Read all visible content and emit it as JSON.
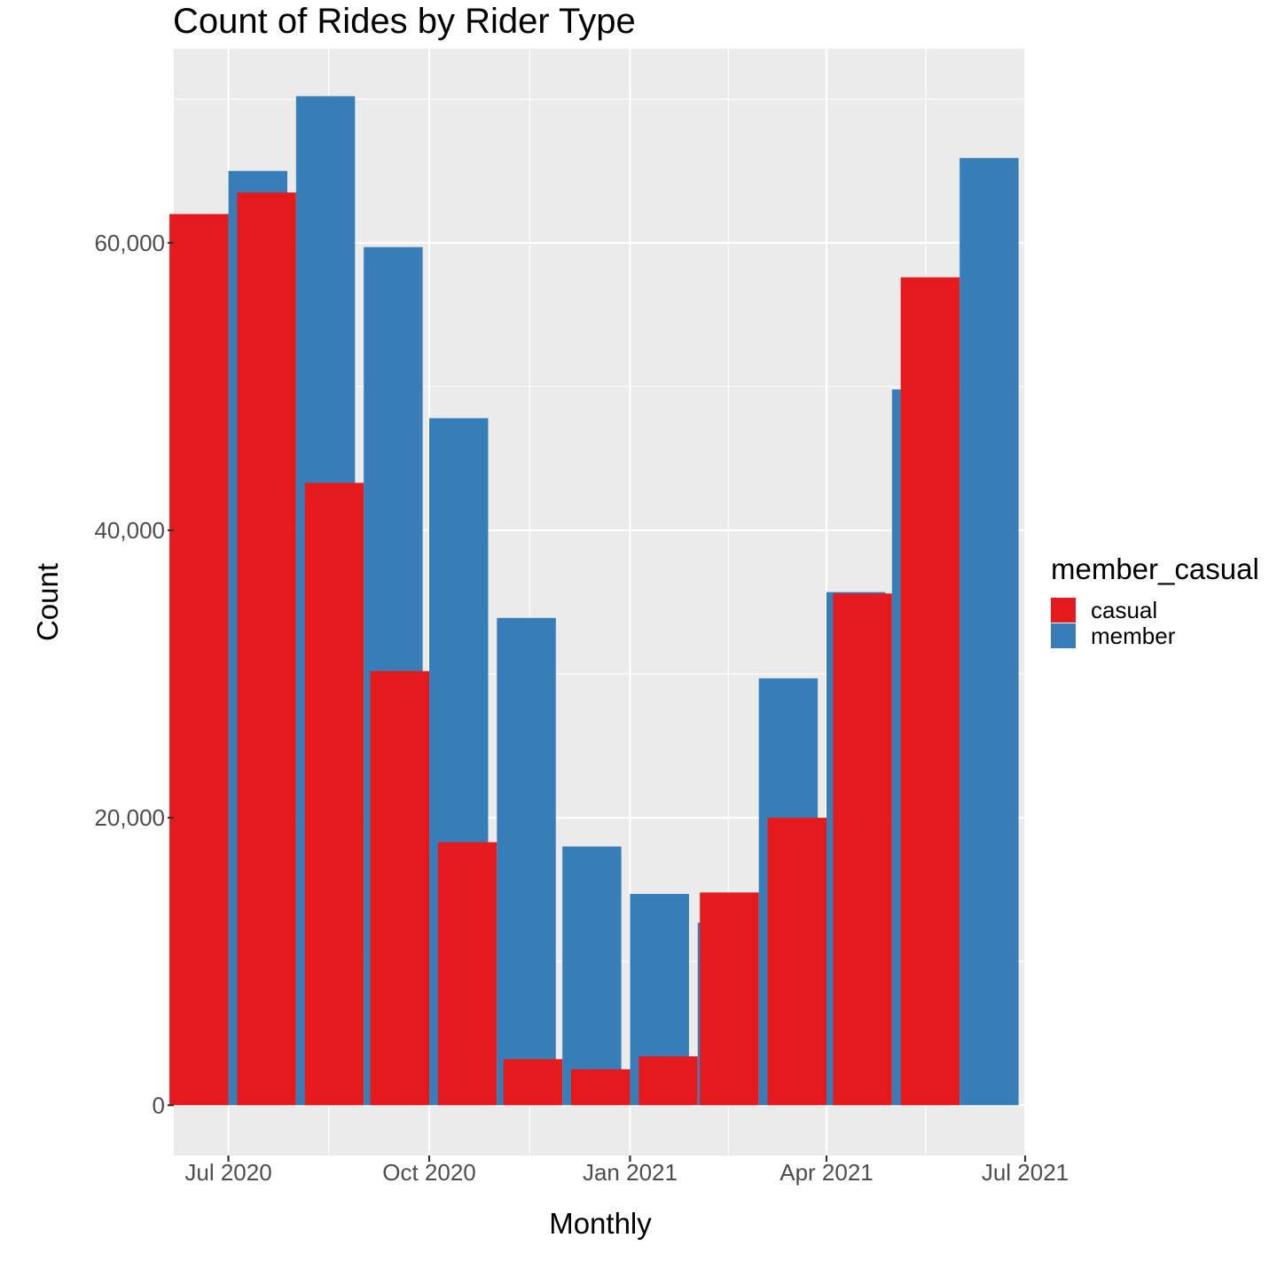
{
  "chart_data": {
    "type": "bar",
    "title": "Count of Rides by Rider Type",
    "xlabel": "Monthly",
    "ylabel": "Count",
    "x_axis_type": "date",
    "x_ticks": [
      {
        "date": "2020-07-01",
        "label": "Jul 2020"
      },
      {
        "date": "2020-10-01",
        "label": "Oct 2020"
      },
      {
        "date": "2021-01-01",
        "label": "Jan 2021"
      },
      {
        "date": "2021-04-01",
        "label": "Apr 2021"
      },
      {
        "date": "2021-07-01",
        "label": "Jul 2021"
      }
    ],
    "xlim": [
      "2020-06-06",
      "2021-07-01"
    ],
    "y_ticks": [
      {
        "value": 0,
        "label": "0"
      },
      {
        "value": 20000,
        "label": "20,000"
      },
      {
        "value": 40000,
        "label": "40,000"
      },
      {
        "value": 60000,
        "label": "60,000"
      }
    ],
    "ylim": [
      -3500,
      73500
    ],
    "grid": true,
    "legend_title": "member_casual",
    "legend_position": "right",
    "categories": [
      "2020-07-01",
      "2020-08-01",
      "2020-09-01",
      "2020-10-01",
      "2020-11-01",
      "2020-12-01",
      "2021-01-01",
      "2021-02-01",
      "2021-03-01",
      "2021-04-01",
      "2021-05-01",
      "2021-06-01"
    ],
    "series": [
      {
        "name": "casual",
        "color": "#E41A1C",
        "values": [
          62000,
          63500,
          43300,
          30200,
          18300,
          3200,
          2500,
          3400,
          14800,
          20000,
          35600,
          57600
        ]
      },
      {
        "name": "member",
        "color": "#377EB8",
        "values": [
          65000,
          70200,
          59700,
          47800,
          33900,
          18000,
          14700,
          12700,
          29700,
          35700,
          49800,
          65900
        ]
      }
    ]
  }
}
